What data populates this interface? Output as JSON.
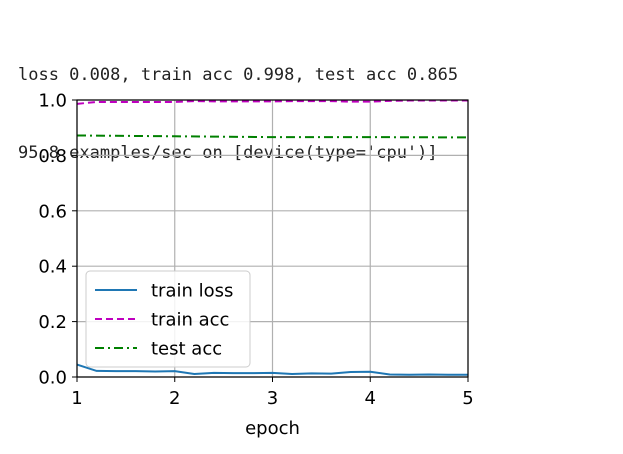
{
  "output": {
    "line1": "loss 0.008, train acc 0.998, test acc 0.865",
    "line2": "95.8 examples/sec on [device(type='cpu')]"
  },
  "chart_data": {
    "type": "line",
    "xlabel": "epoch",
    "ylabel": "",
    "xlim": [
      1,
      5
    ],
    "ylim": [
      0,
      1
    ],
    "xticks": [
      1,
      2,
      3,
      4,
      5
    ],
    "yticks": [
      0.0,
      0.2,
      0.4,
      0.6,
      0.8,
      1.0
    ],
    "ytick_labels": [
      "0.0",
      "0.2",
      "0.4",
      "0.6",
      "0.8",
      "1.0"
    ],
    "grid": true,
    "legend_position": "lower-left",
    "series": [
      {
        "name": "train loss",
        "color": "#1f77b4",
        "style": "solid",
        "x": [
          1.0,
          1.2,
          1.4,
          1.6,
          1.8,
          2.0,
          2.2,
          2.4,
          2.6,
          2.8,
          3.0,
          3.2,
          3.4,
          3.6,
          3.8,
          4.0,
          4.2,
          4.4,
          4.6,
          4.8,
          5.0
        ],
        "values": [
          0.045,
          0.022,
          0.021,
          0.021,
          0.02,
          0.021,
          0.011,
          0.015,
          0.014,
          0.014,
          0.015,
          0.011,
          0.013,
          0.012,
          0.018,
          0.019,
          0.009,
          0.008,
          0.009,
          0.008,
          0.008
        ]
      },
      {
        "name": "train acc",
        "color": "#bf00bf",
        "style": "dashed",
        "x": [
          1.0,
          1.2,
          1.4,
          1.6,
          1.8,
          2.0,
          2.2,
          2.4,
          2.6,
          2.8,
          3.0,
          3.2,
          3.4,
          3.6,
          3.8,
          4.0,
          4.2,
          4.4,
          4.6,
          4.8,
          5.0
        ],
        "values": [
          0.986,
          0.993,
          0.993,
          0.993,
          0.993,
          0.993,
          0.996,
          0.995,
          0.995,
          0.995,
          0.995,
          0.996,
          0.996,
          0.996,
          0.994,
          0.994,
          0.997,
          0.998,
          0.998,
          0.998,
          0.998
        ]
      },
      {
        "name": "test acc",
        "color": "#008000",
        "style": "dashdot",
        "x": [
          1,
          2,
          3,
          4,
          5
        ],
        "values": [
          0.872,
          0.869,
          0.866,
          0.866,
          0.865
        ]
      }
    ]
  }
}
